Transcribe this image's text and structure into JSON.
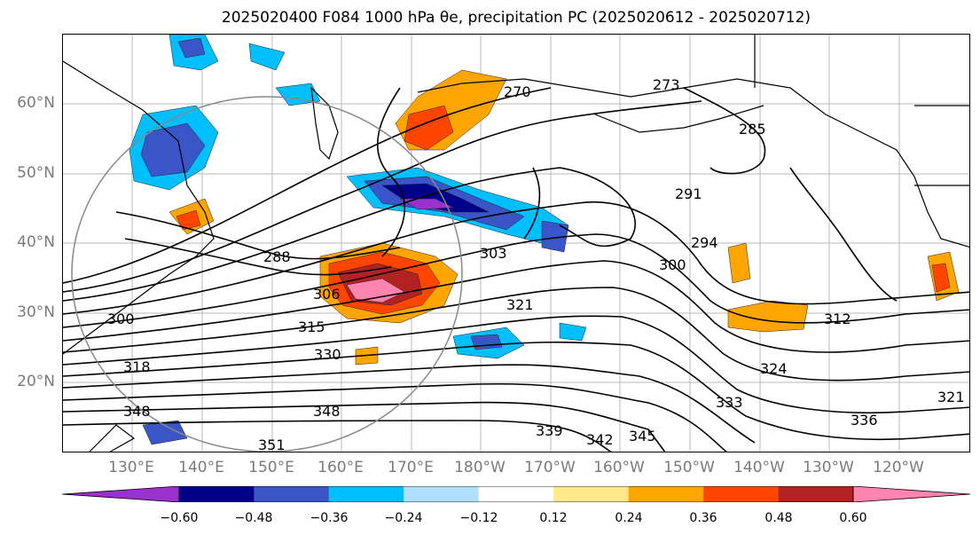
{
  "title": "2025020400 F084 1000 hPa θe, precipitation PC (2025020612 - 2025020712)",
  "lat_labels": [
    "60°N",
    "50°N",
    "40°N",
    "30°N",
    "20°N"
  ],
  "lon_labels": [
    "130°E",
    "140°E",
    "150°E",
    "160°E",
    "170°E",
    "180°W",
    "170°W",
    "160°W",
    "150°W",
    "140°W",
    "130°W",
    "120°W"
  ],
  "contour_labels": [
    "270",
    "273",
    "285",
    "291",
    "294",
    "300",
    "303",
    "306",
    "312",
    "315",
    "318",
    "321",
    "324",
    "330",
    "333",
    "336",
    "339",
    "342",
    "345",
    "348",
    "348",
    "351",
    "288",
    "300",
    "321"
  ],
  "colorbar": {
    "ticks": [
      "−0.60",
      "−0.48",
      "−0.36",
      "−0.24",
      "−0.12",
      "0.12",
      "0.24",
      "0.36",
      "0.48",
      "0.60"
    ],
    "colors": [
      "#9932cc",
      "#00008b",
      "#3a55c8",
      "#00bfff",
      "#b0e0ff",
      "#ffffff",
      "#ffe98a",
      "#ffa500",
      "#ff4500",
      "#b22222",
      "#ff85b0"
    ]
  }
}
